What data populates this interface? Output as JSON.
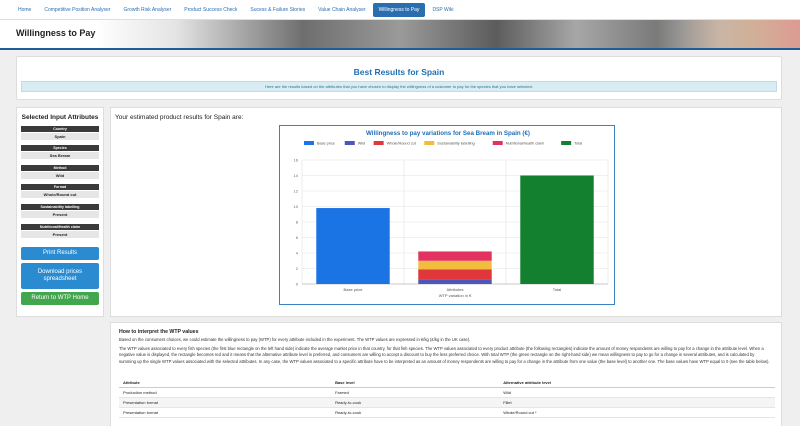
{
  "nav": {
    "tabs": [
      {
        "label": "Home",
        "active": false
      },
      {
        "label": "Competitive Position Analyser",
        "active": false
      },
      {
        "label": "Growth Risk Analyser",
        "active": false
      },
      {
        "label": "Product Success Check",
        "active": false
      },
      {
        "label": "Sucess & Failure Stories",
        "active": false
      },
      {
        "label": "Value Chain Analyser",
        "active": false
      },
      {
        "label": "Willingness to Pay",
        "active": true
      },
      {
        "label": "DSP Wiki",
        "active": false
      }
    ]
  },
  "banner": {
    "title": "Willingness to Pay"
  },
  "best": {
    "title": "Best Results for Spain",
    "info": "Here are the results based on the attributes that you have chosen to display the willingness of a customer to pay for the species that you have selected."
  },
  "sidebar": {
    "title": "Selected Input Attributes",
    "attributes": [
      {
        "label": "Country",
        "value": "Spain"
      },
      {
        "label": "Species",
        "value": "Sea Bream"
      },
      {
        "label": "Method",
        "value": "Wild"
      },
      {
        "label": "Format",
        "value": "Whole/Round cut"
      },
      {
        "label": "Sustainability labelling",
        "value": "Present"
      },
      {
        "label": "Nutritional/Health claim",
        "value": "Present"
      }
    ],
    "buttons": {
      "print": "Print Results",
      "download": "Download prices spreadsheet",
      "return": "Return to WTP Home"
    }
  },
  "main": {
    "title": "Your estimated product results for Spain are:"
  },
  "chart_data": {
    "type": "bar",
    "title": "Willingness to pay variations for Sea Bream in Spain (€)",
    "xlabel": "WTP variation in €",
    "ylabel": "",
    "ylim": [
      0,
      16
    ],
    "yticks": [
      0,
      2,
      4,
      6,
      8,
      10,
      12,
      14,
      16
    ],
    "grid": true,
    "legend_position": "top",
    "categories": [
      "Base price",
      "Attributes",
      "Total"
    ],
    "series": [
      {
        "name": "Base price",
        "color": "#1b74e4",
        "values": [
          9.8,
          0,
          0
        ]
      },
      {
        "name": "Wild",
        "color": "#5055b8",
        "values": [
          0,
          0.6,
          0
        ]
      },
      {
        "name": "Whole/Round cut",
        "color": "#e0373a",
        "values": [
          0,
          1.3,
          0
        ]
      },
      {
        "name": "Sustainability labelling",
        "color": "#f2bd3e",
        "values": [
          0,
          1.1,
          0
        ]
      },
      {
        "name": "Nutritional/health claim",
        "color": "#e3325f",
        "values": [
          0,
          1.2,
          0
        ]
      },
      {
        "name": "Total",
        "color": "#12802e",
        "values": [
          0,
          0,
          14
        ]
      }
    ]
  },
  "interp": {
    "title": "How to interpret the WTP values",
    "p1": "Based on the consumers choices, we could estimate the willingness to pay (WTP) for every attribute included in the experiment. The WTP values are expressed in €/kg (£/kg in the UK case).",
    "p2": "The WTP values associated to every fish species (the first blue rectangle on the left hand side) indicate the average market price in that country, for that fish species. The WTP values associated to every product attribute (the following rectangles) indicate the amount of money respondents are willing to pay for a change in the attribute level. When a negative value is displayed, the rectangle becomes red and it means that the alternative attribute level is preferred, and consumers are willing to accept a discount to buy the less preferred choice. With total WTP (the green rectangle on the right-hand side) we mean willingness to pay to go for a change in several attributes, and is calculated by summing up the single WTP values associated with the selected attributes. In any case, the WTP values associated to a specific attribute have to be interpreted as an amount of money respondents are willing to pay for a change in the attribute from one value (the base level) to another one. The base values have WTP equal to 0 (see the table below).",
    "table": {
      "headers": [
        "Attribute",
        "Base level",
        "Alternative attribute level"
      ],
      "rows": [
        [
          "Production method",
          "Farmed",
          "Wild"
        ],
        [
          "Presentation format",
          "Ready-to-cook",
          "Fillet"
        ],
        [
          "Presentation format",
          "Ready-to-cook",
          "Whole/Round cut *"
        ]
      ]
    }
  }
}
